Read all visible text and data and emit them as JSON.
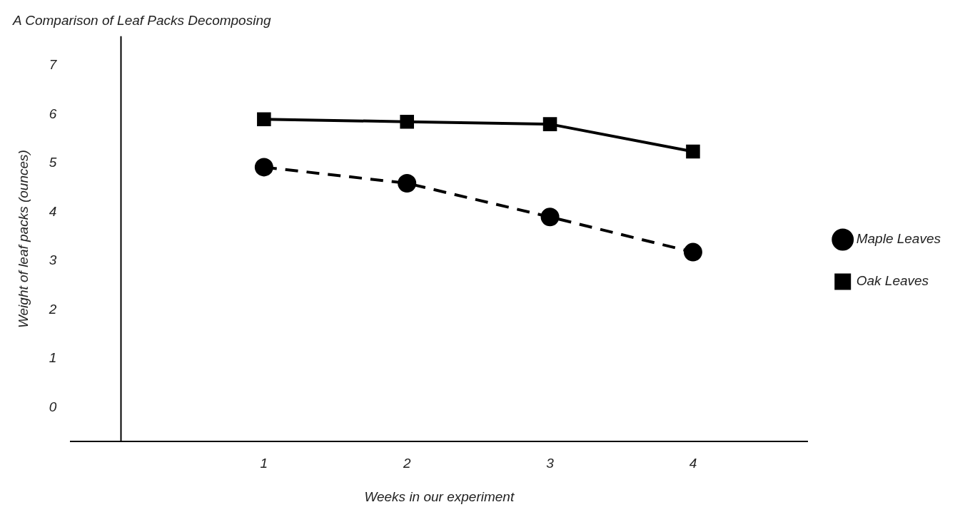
{
  "chart_data": {
    "type": "line",
    "title": "A Comparison of Leaf Packs Decomposing",
    "xlabel": "Weeks in our experiment",
    "ylabel": "Weight of leaf packs (ounces)",
    "x": [
      1,
      2,
      3,
      4
    ],
    "series": [
      {
        "name": "Maple Leaves",
        "color": "#000000",
        "values": [
          4.92,
          4.59,
          3.9,
          3.18
        ],
        "marker": "circle",
        "line_style": "dashed"
      },
      {
        "name": "Oak Leaves",
        "color": "#000000",
        "values": [
          5.9,
          5.85,
          5.8,
          5.24
        ],
        "marker": "square",
        "line_style": "solid"
      }
    ],
    "xlim": [
      -0.35,
      4.8
    ],
    "xticks": [
      1,
      2,
      3,
      4
    ],
    "ylim": [
      -0.7,
      7.6
    ],
    "yticks": [
      0,
      1,
      2,
      3,
      4,
      5,
      6,
      7
    ],
    "grid": false,
    "legend": "right"
  }
}
